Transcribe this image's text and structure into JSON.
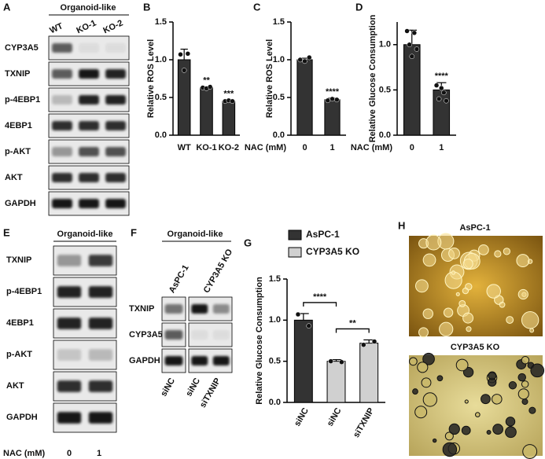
{
  "panels": {
    "A": {
      "label": "A",
      "title": "Organoid-like",
      "lanes": [
        "WT",
        "KO-1",
        "KO-2"
      ],
      "rows": [
        "CYP3A5",
        "TXNIP",
        "p-4EBP1",
        "4EBP1",
        "p-AKT",
        "AKT",
        "GAPDH"
      ]
    },
    "E": {
      "label": "E",
      "title": "Organoid-like",
      "rows": [
        "TXNIP",
        "p-4EBP1",
        "4EBP1",
        "p-AKT",
        "AKT",
        "GAPDH"
      ],
      "xlabel": "NAC (mM)",
      "lanes": [
        "0",
        "1"
      ]
    },
    "F": {
      "label": "F",
      "title": "Organoid-like",
      "groups": [
        "AsPC-1",
        "CYP3A5 KO"
      ],
      "rows": [
        "TXNIP",
        "CYP3A5",
        "GAPDH"
      ],
      "lanes": [
        "siNC",
        "siNC",
        "siTXNIP"
      ]
    },
    "H": {
      "label": "H",
      "images": [
        "AsPC-1",
        "CYP3A5 KO"
      ]
    }
  },
  "chart_data": [
    {
      "type": "bar",
      "panel_label": "B",
      "ylabel": "Relative ROS Level",
      "categories": [
        "WT",
        "KO-1",
        "KO-2"
      ],
      "values": [
        1.0,
        0.63,
        0.45
      ],
      "errors": [
        0.14,
        0.01,
        0.01
      ],
      "points": [
        [
          1.07,
          0.86,
          1.08
        ],
        [
          0.63,
          0.62,
          0.64
        ],
        [
          0.45,
          0.46,
          0.45
        ]
      ],
      "significance": [
        null,
        "**",
        "***"
      ],
      "color": "#333333",
      "ylim": [
        0,
        1.5
      ],
      "yticks": [
        {
          "value": 0,
          "label": "0.0"
        },
        0.5,
        {
          "value": 1,
          "label": "1.0"
        },
        1.5
      ]
    },
    {
      "type": "bar",
      "panel_label": "C",
      "ylabel": "Relative ROS Level",
      "xlabel": "NAC (mM)",
      "categories": [
        "0",
        "1"
      ],
      "values": [
        1.0,
        0.47
      ],
      "errors": [
        0.02,
        0.02
      ],
      "points": [
        [
          1.0,
          0.98,
          1.03
        ],
        [
          0.46,
          0.48,
          0.47
        ]
      ],
      "significance": [
        null,
        "****"
      ],
      "color": "#333333",
      "ylim": [
        0,
        1.5
      ],
      "yticks": [
        {
          "value": 0,
          "label": "0.0"
        },
        0.5,
        {
          "value": 1,
          "label": "1.0"
        },
        1.5
      ]
    },
    {
      "type": "bar",
      "panel_label": "D",
      "ylabel": "Relative Glucose Consumption",
      "xlabel": "NAC (mM)",
      "categories": [
        "0",
        "1"
      ],
      "values": [
        1.0,
        0.5
      ],
      "errors": [
        0.16,
        0.08
      ],
      "points": [
        [
          1.15,
          1.0,
          0.87,
          1.13,
          0.95
        ],
        [
          0.55,
          0.4,
          0.52,
          0.47,
          0.38
        ]
      ],
      "significance": [
        null,
        "****"
      ],
      "color": "#333333",
      "ylim": [
        0,
        1.25
      ],
      "yticks": [
        {
          "value": 0,
          "label": "0.0"
        },
        0.5,
        {
          "value": 1,
          "label": "1.0"
        }
      ]
    },
    {
      "type": "bar",
      "panel_label": "G",
      "ylabel": "Relative Glucose Consumption",
      "categories": [
        "siNC",
        "siNC",
        "siTXNIP"
      ],
      "values": [
        1.0,
        0.5,
        0.72
      ],
      "errors": [
        0.08,
        0.02,
        0.04
      ],
      "points": [
        [
          1.07,
          0.93
        ],
        [
          0.5,
          0.49
        ],
        [
          0.7,
          0.74
        ]
      ],
      "series": [
        {
          "name": "AsPC-1",
          "color": "#333333"
        },
        {
          "name": "CYP3A5 KO",
          "color": "#d0d0d0"
        }
      ],
      "bar_series": [
        0,
        1,
        1
      ],
      "comparisons": [
        {
          "between": [
            0,
            1
          ],
          "label": "****"
        },
        {
          "between": [
            1,
            2
          ],
          "label": "**"
        }
      ],
      "ylim": [
        0,
        1.5
      ],
      "yticks": [
        {
          "value": 0,
          "label": "0.0"
        },
        0.5,
        {
          "value": 1,
          "label": "1.0"
        },
        1.5
      ]
    }
  ]
}
